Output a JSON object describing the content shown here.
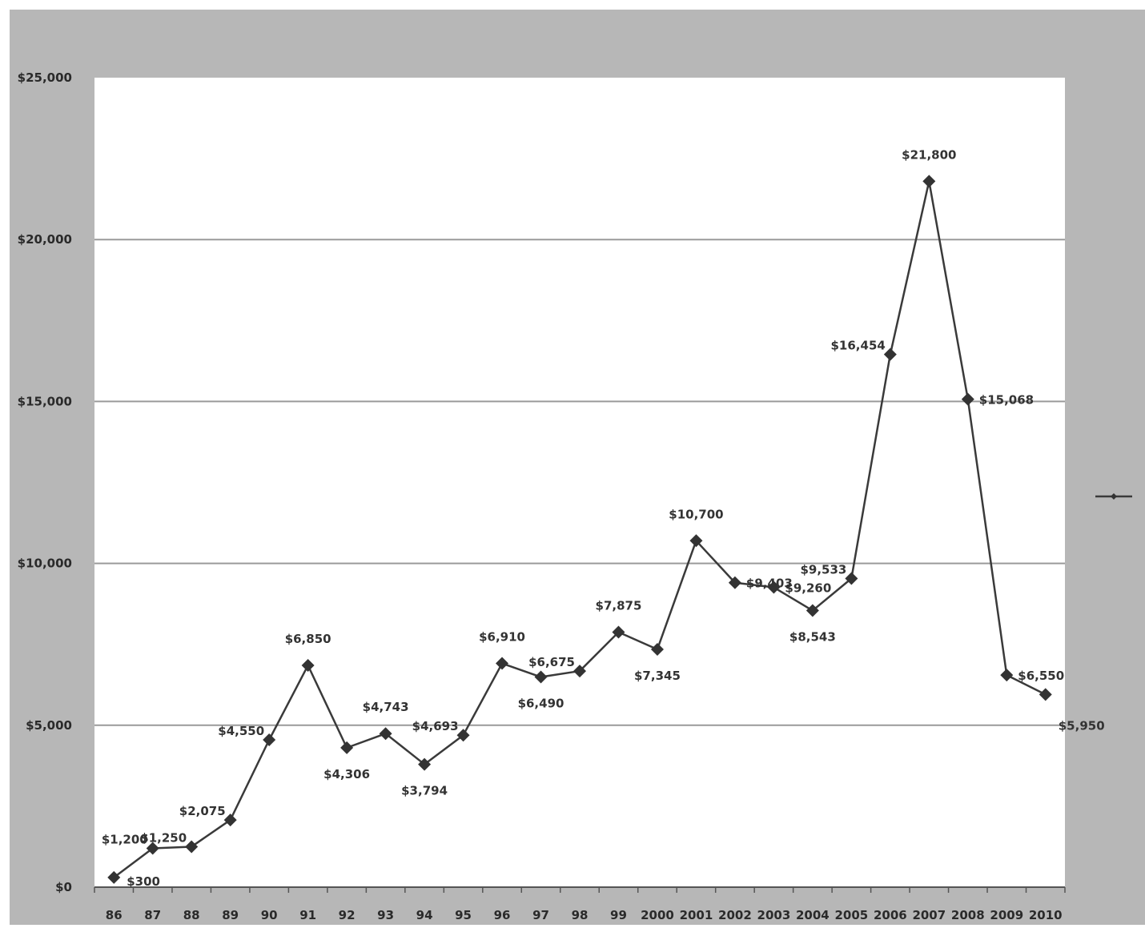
{
  "chart_data": {
    "type": "line",
    "title": "",
    "xlabel": "",
    "ylabel": "",
    "categories": [
      "86",
      "87",
      "88",
      "89",
      "90",
      "91",
      "92",
      "93",
      "94",
      "95",
      "96",
      "97",
      "98",
      "99",
      "2000",
      "2001",
      "2002",
      "2003",
      "2004",
      "2005",
      "2006",
      "2007",
      "2008",
      "2009",
      "2010"
    ],
    "series": [
      {
        "name": "",
        "values": [
          300,
          1200,
          1250,
          2075,
          4550,
          6850,
          4306,
          4743,
          3794,
          4693,
          6910,
          6490,
          6675,
          7875,
          7345,
          10700,
          9403,
          9260,
          8543,
          9533,
          16454,
          21800,
          15068,
          6550,
          5950
        ],
        "data_labels": [
          "$300",
          "$1,200",
          "$1,250",
          "$2,075",
          "$4,550",
          "$6,850",
          "$4,306",
          "$4,743",
          "$3,794",
          "$4,693",
          "$6,910",
          "$6,490",
          "$6,675",
          "$7,875",
          "$7,345",
          "$10,700",
          "$9,403",
          "$9,260",
          "$8,543",
          "$9,533",
          "$16,454",
          "$21,800",
          "$15,068",
          "$6,550",
          "$5,950"
        ]
      }
    ],
    "ylim": [
      0,
      25000
    ],
    "yticks": [
      0,
      5000,
      10000,
      15000,
      20000,
      25000
    ],
    "ytick_labels": [
      "$0",
      "$5,000",
      "$10,000",
      "$15,000",
      "$20,000",
      "$25,000"
    ],
    "grid": true,
    "legend": "right",
    "colors": {
      "frame_background": "#b7b7b7",
      "plot_background": "#ffffff",
      "gridline": "#9a9a9a",
      "line": "#3a3a3a",
      "marker": "#333333"
    }
  }
}
